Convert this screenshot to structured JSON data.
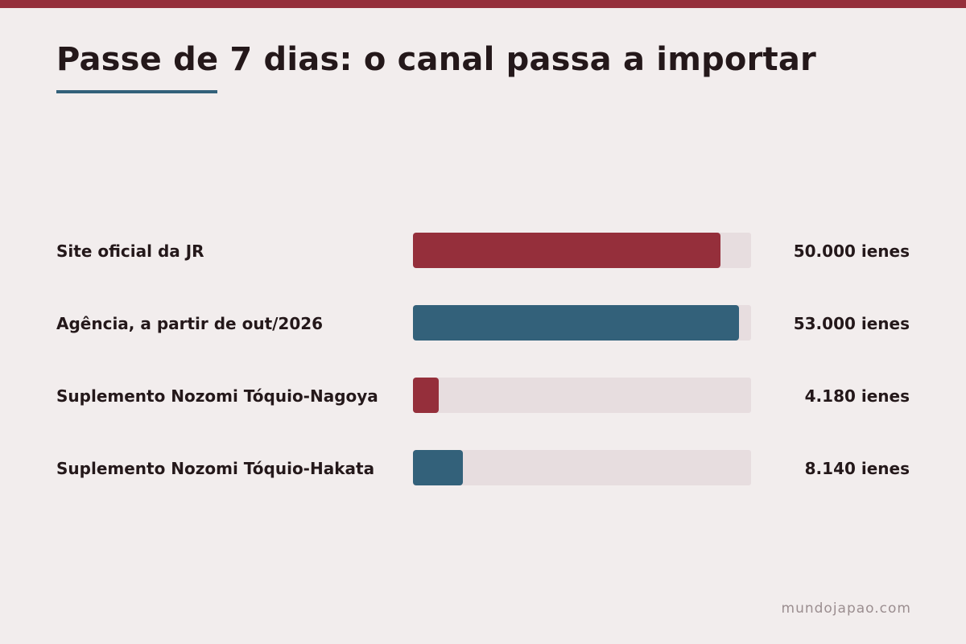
{
  "header": {
    "title": "Passe de 7 dias: o canal passa a importar"
  },
  "colors": {
    "accent_red": "#952f3b",
    "accent_blue": "#33617a",
    "track": "#e7dddf",
    "background": "#f2eded"
  },
  "chart_data": {
    "type": "bar",
    "orientation": "horizontal",
    "title": "Passe de 7 dias: o canal passa a importar",
    "xlabel": "",
    "ylabel": "",
    "xlim": [
      0,
      55000
    ],
    "grid": false,
    "unit": "ienes",
    "categories": [
      "Site oficial da JR",
      "Agência, a partir de out/2026",
      "Suplemento Nozomi Tóquio-Nagoya",
      "Suplemento Nozomi Tóquio-Hakata"
    ],
    "values": [
      50000,
      53000,
      4180,
      8140
    ],
    "value_labels": [
      "50.000 ienes",
      "53.000 ienes",
      "4.180 ienes",
      "8.140 ienes"
    ],
    "bar_colors": [
      "#952f3b",
      "#33617a",
      "#952f3b",
      "#33617a"
    ]
  },
  "footer": {
    "source": "mundojapao.com"
  }
}
